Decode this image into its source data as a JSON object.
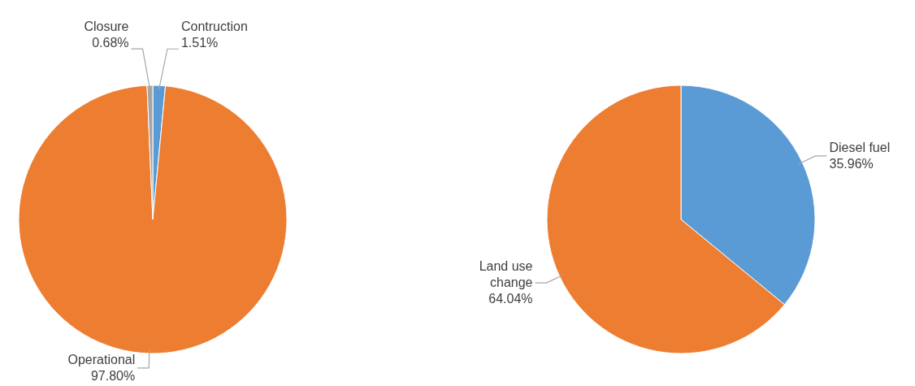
{
  "chart_data": [
    {
      "type": "pie",
      "categories": [
        "Contruction",
        "Operational",
        "Closure"
      ],
      "values": [
        1.51,
        97.8,
        0.68
      ],
      "value_labels": [
        "1.51%",
        "97.80%",
        "0.68%"
      ],
      "colors": [
        "#5b9bd5",
        "#ed7d31",
        "#a5a5a5"
      ]
    },
    {
      "type": "pie",
      "categories": [
        "Diesel fuel",
        "Land use change"
      ],
      "values": [
        35.96,
        64.04
      ],
      "value_labels": [
        "35.96%",
        "64.04%"
      ],
      "colors": [
        "#5b9bd5",
        "#ed7d31"
      ]
    }
  ]
}
